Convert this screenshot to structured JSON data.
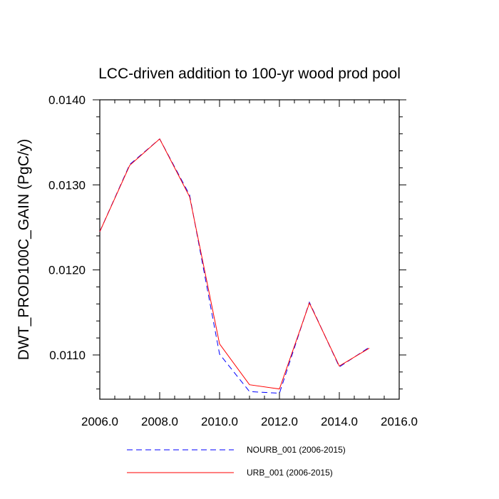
{
  "chart_data": {
    "type": "line",
    "title": "LCC-driven addition to 100-yr wood prod pool",
    "xlabel": "",
    "ylabel": "DWT_PROD100C_GAIN  (PgC/y)",
    "xlim": [
      2006,
      2016
    ],
    "ylim": [
      0.01048,
      0.014
    ],
    "x_ticks": [
      2006,
      2008,
      2010,
      2012,
      2014,
      2016
    ],
    "x_tick_labels": [
      "2006.0",
      "2008.0",
      "2010.0",
      "2012.0",
      "2014.0",
      "2016.0"
    ],
    "y_ticks": [
      0.011,
      0.012,
      0.013,
      0.014
    ],
    "y_tick_labels": [
      "0.0110",
      "0.0120",
      "0.0130",
      "0.0140"
    ],
    "grid": false,
    "legend_position": "bottom",
    "x": [
      2006,
      2007,
      2008,
      2009,
      2010,
      2011,
      2012,
      2013,
      2014,
      2015
    ],
    "series": [
      {
        "name": "NOURB_001 (2006-2015)",
        "color": "#0000ff",
        "dash": "dashed",
        "values": [
          0.01245,
          0.01324,
          0.01354,
          0.01288,
          0.01101,
          0.01057,
          0.01055,
          0.01162,
          0.01086,
          0.01109
        ]
      },
      {
        "name": "URB_001 (2006-2015)",
        "color": "#ff0000",
        "dash": "solid",
        "values": [
          0.01245,
          0.01323,
          0.01354,
          0.01286,
          0.01113,
          0.01065,
          0.0106,
          0.01161,
          0.01087,
          0.01108
        ]
      }
    ]
  }
}
